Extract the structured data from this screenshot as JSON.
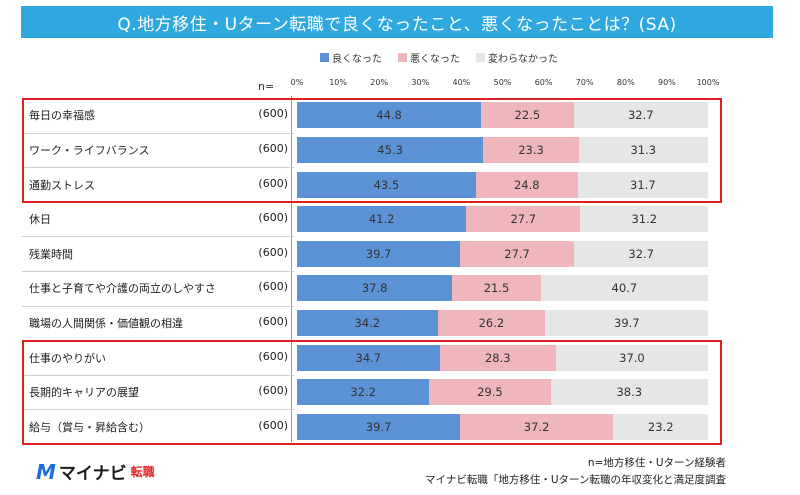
{
  "title": "Q.地方移住・Uターン転職で良くなったこと、悪くなったことは？(SA)",
  "n_header": "n=",
  "footer_n": "n=地方移住・Uターン経験者",
  "footer_source": "マイナビ転職「地方移住・Uターン転職の年収変化と満足度調査",
  "logo": {
    "mark": "M",
    "text": "マイナビ",
    "sub": "転職"
  },
  "colors": {
    "good": "#5b93d6",
    "bad": "#efb7bb",
    "neutral": "#e6e6e6",
    "highlight": "#e02020",
    "title_bg": "#2ea8df"
  },
  "chart_data": {
    "type": "bar",
    "stacked": true,
    "orientation": "horizontal",
    "title": "Q.地方移住・Uターン転職で良くなったこと、悪くなったことは？(SA)",
    "xlim": [
      0,
      100
    ],
    "x_ticks": [
      "0%",
      "10%",
      "20%",
      "30%",
      "40%",
      "50%",
      "60%",
      "70%",
      "80%",
      "90%",
      "100%"
    ],
    "legend_position": "top",
    "categories": [
      "毎日の幸福感",
      "ワーク・ライフバランス",
      "通勤ストレス",
      "休日",
      "残業時間",
      "仕事と子育てや介護の両立のしやすさ",
      "職場の人間関係・価値観の相違",
      "仕事のやりがい",
      "長期的キャリアの展望",
      "給与（賞与・昇給含む）"
    ],
    "n_values": [
      "(600)",
      "(600)",
      "(600)",
      "(600)",
      "(600)",
      "(600)",
      "(600)",
      "(600)",
      "(600)",
      "(600)"
    ],
    "series": [
      {
        "name": "良くなった",
        "values": [
          44.8,
          45.3,
          43.5,
          41.2,
          39.7,
          37.8,
          34.2,
          34.7,
          32.2,
          39.7
        ]
      },
      {
        "name": "悪くなった",
        "values": [
          22.5,
          23.3,
          24.8,
          27.7,
          27.7,
          21.5,
          26.2,
          28.3,
          29.5,
          37.2
        ]
      },
      {
        "name": "変わらなかった",
        "values": [
          32.7,
          31.3,
          31.7,
          31.2,
          32.7,
          40.7,
          39.7,
          37.0,
          38.3,
          23.2
        ]
      }
    ],
    "highlight_groups": [
      [
        0,
        2
      ],
      [
        7,
        9
      ]
    ]
  }
}
